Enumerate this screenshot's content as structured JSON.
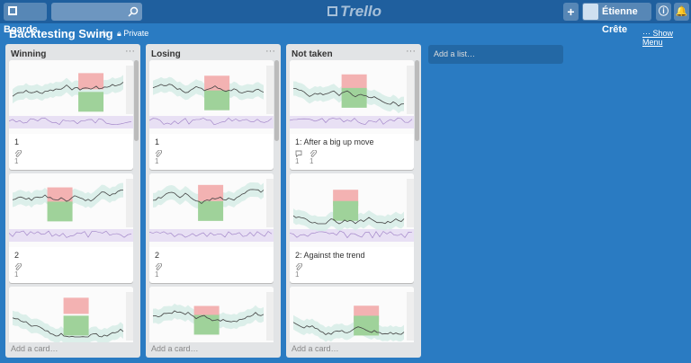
{
  "header": {
    "boards": "Boards",
    "logo": "Trello",
    "user": "Étienne Crête"
  },
  "board": {
    "title": "Backtesting Swing",
    "visibility": "Private",
    "show_menu": "Show Menu",
    "add_list": "Add a list…"
  },
  "lists": [
    {
      "title": "Winning",
      "add_card": "Add a card…",
      "cards": [
        {
          "title": "1",
          "attachments": 1
        },
        {
          "title": "2",
          "attachments": 1
        }
      ]
    },
    {
      "title": "Losing",
      "add_card": "Add a card…",
      "cards": [
        {
          "title": "1",
          "attachments": 1
        },
        {
          "title": "2",
          "attachments": 1
        }
      ]
    },
    {
      "title": "Not taken",
      "add_card": "Add a card…",
      "cards": [
        {
          "title": "1: After a big up move",
          "comments": 1,
          "attachments": 1
        },
        {
          "title": "2: Against the trend",
          "attachments": 1
        }
      ]
    }
  ]
}
